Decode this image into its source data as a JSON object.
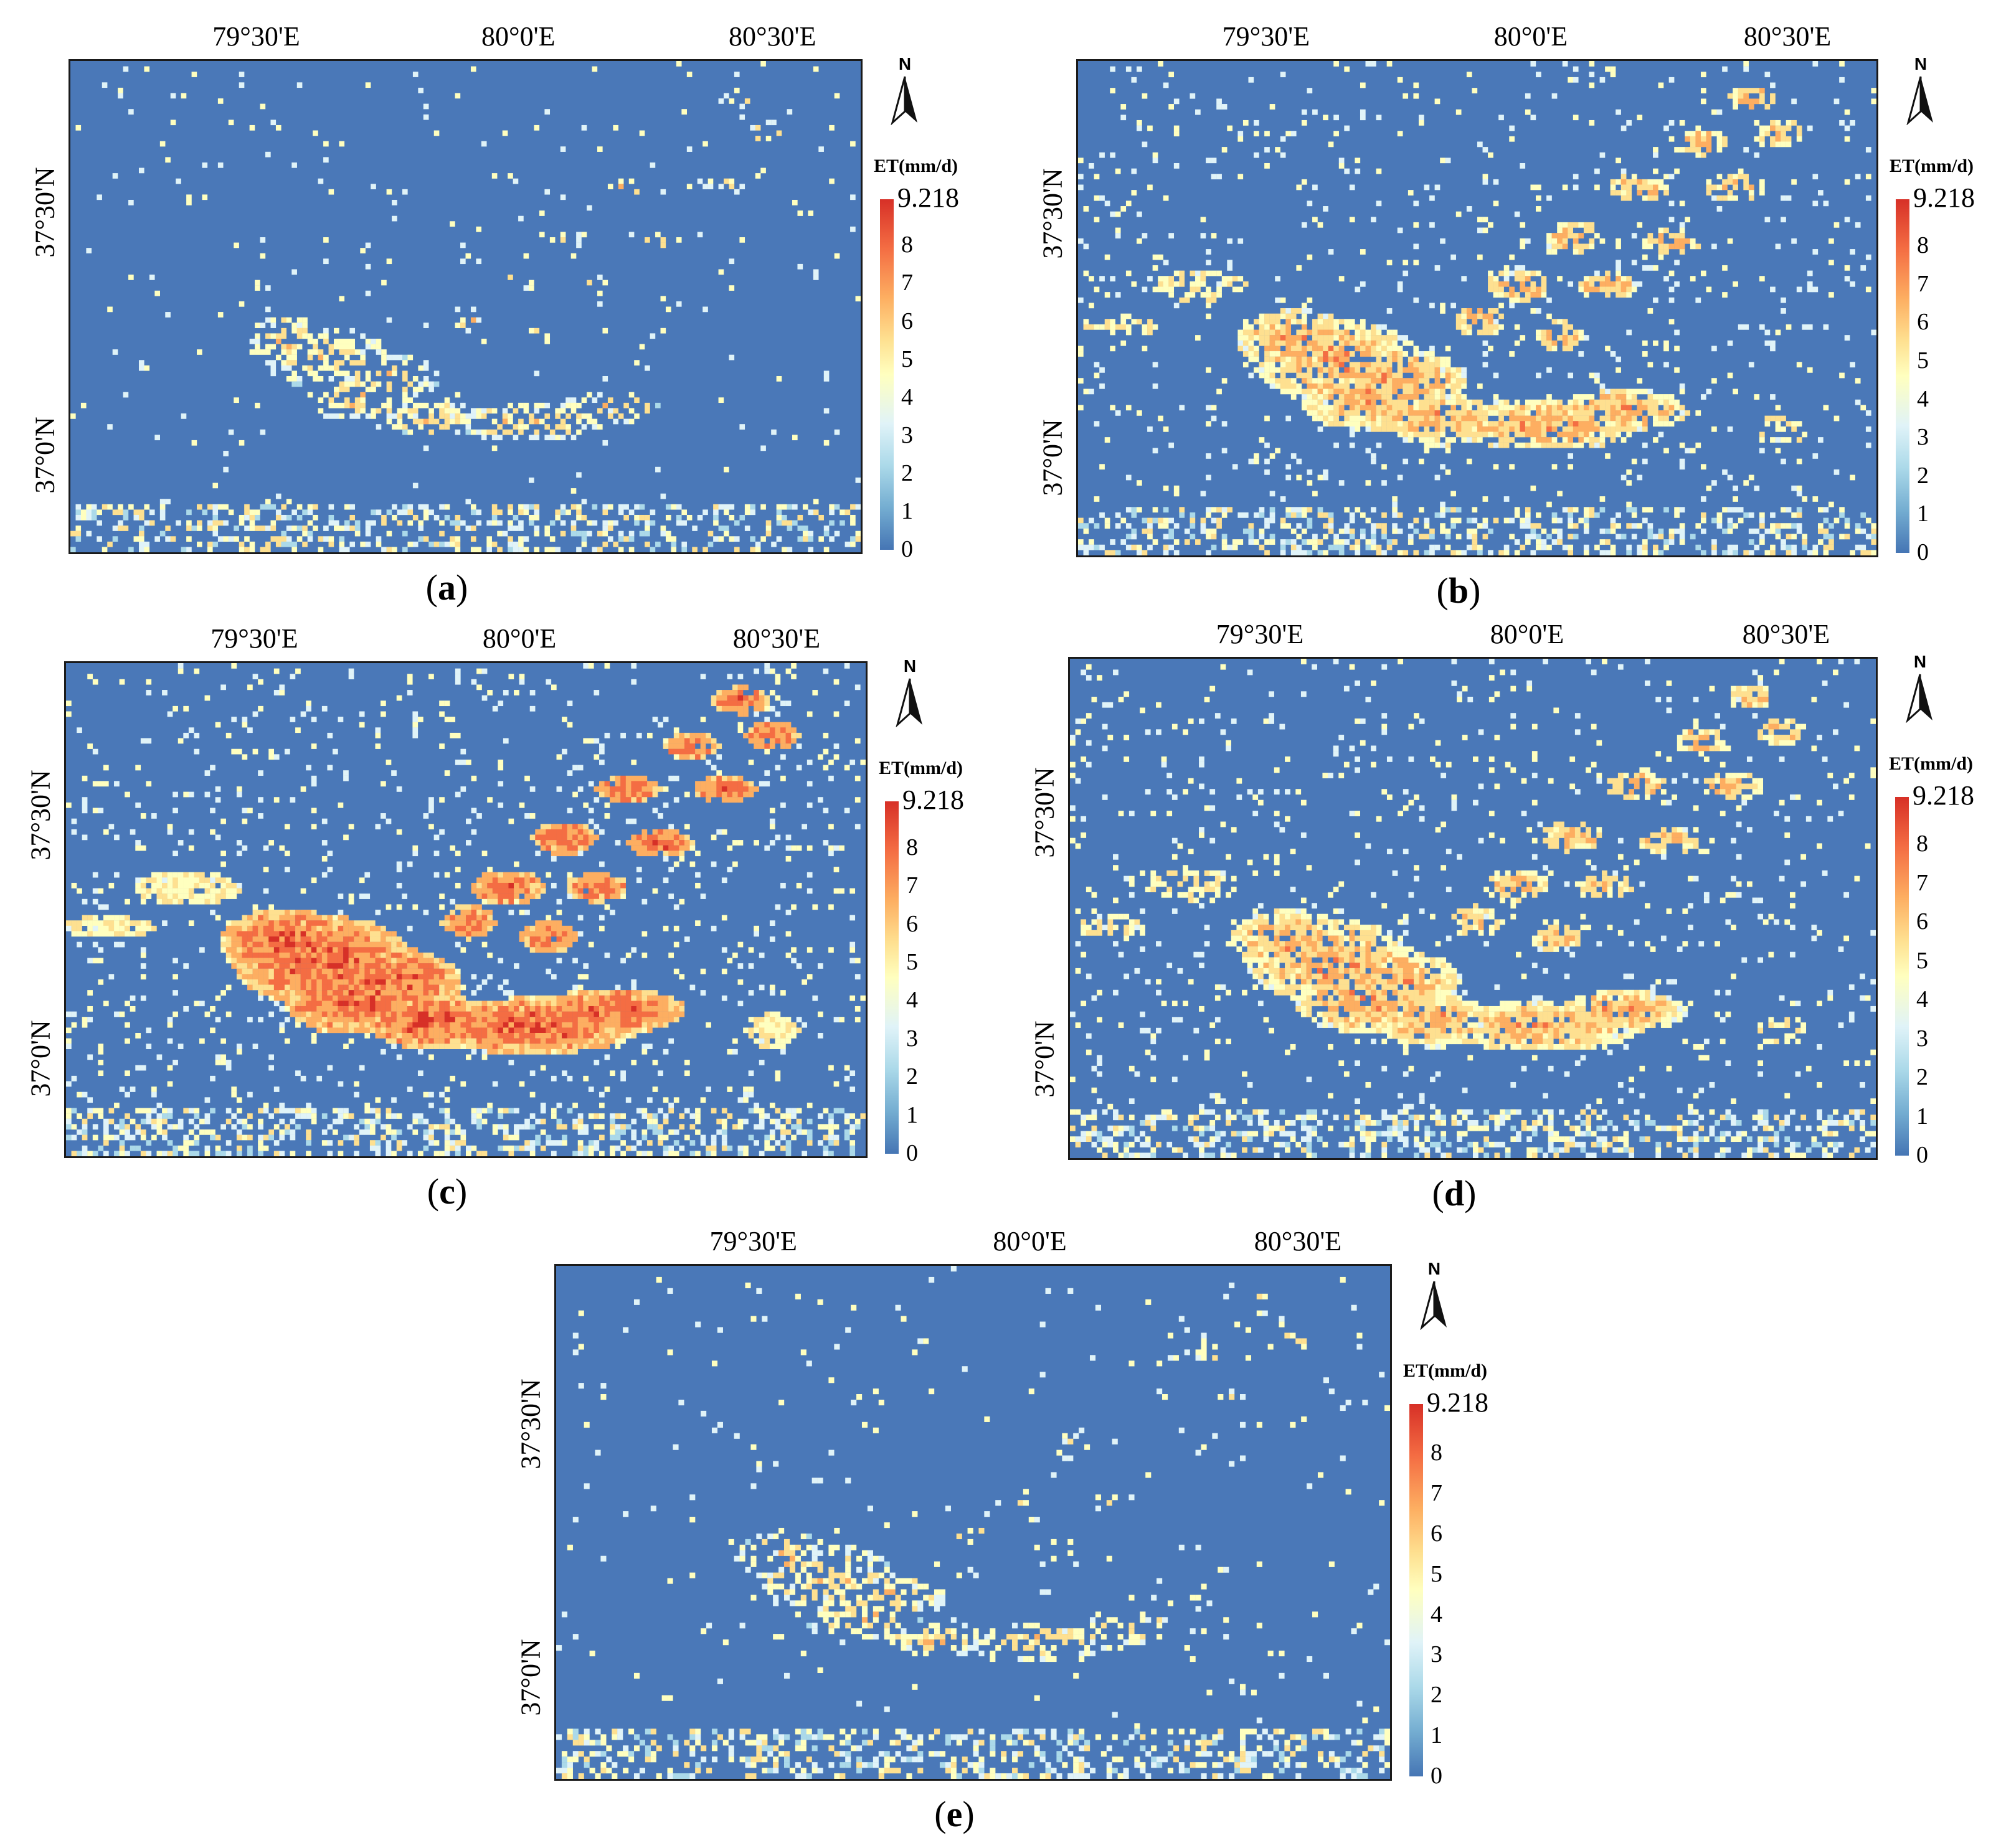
{
  "lon_labels": [
    "79°30'E",
    "80°0'E",
    "80°30'E"
  ],
  "lat_labels": [
    "37°30'N",
    "37°0'N"
  ],
  "north_label": "N",
  "legend": {
    "title": "ET(mm/d)",
    "max": "9.218",
    "ticks": [
      "8",
      "7",
      "6",
      "5",
      "4",
      "3",
      "2",
      "1",
      "0"
    ],
    "value_range": [
      0,
      9.218
    ],
    "colors": [
      "#4575b4",
      "#74add1",
      "#abd9e9",
      "#e0f3f8",
      "#ffffbf",
      "#fee090",
      "#fdae61",
      "#f46d43",
      "#d73027"
    ]
  },
  "background_color": "#4a78b8",
  "panels": [
    {
      "id": "a",
      "caption_open": "(",
      "caption_letter": "a",
      "caption_close": ")",
      "intensity": "low"
    },
    {
      "id": "b",
      "caption_open": "(",
      "caption_letter": "b",
      "caption_close": ")",
      "intensity": "medium"
    },
    {
      "id": "c",
      "caption_open": "(",
      "caption_letter": "c",
      "caption_close": ")",
      "intensity": "high"
    },
    {
      "id": "d",
      "caption_open": "(",
      "caption_letter": "d",
      "caption_close": ")",
      "intensity": "medium"
    },
    {
      "id": "e",
      "caption_open": "(",
      "caption_letter": "e",
      "caption_close": ")",
      "intensity": "low"
    }
  ]
}
